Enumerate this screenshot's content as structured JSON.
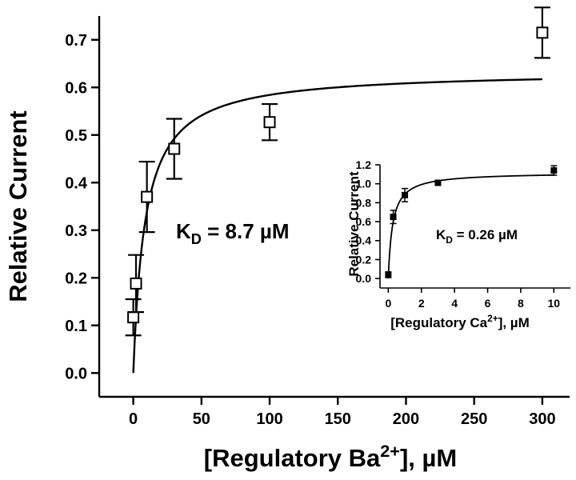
{
  "chart_data": [
    {
      "type": "scatter",
      "title": "",
      "xlabel_main": "[Regulatory Ba",
      "xlabel_sup": "2+",
      "xlabel_tail": "], µM",
      "ylabel": "Relative Current",
      "xlim": [
        -25,
        320
      ],
      "ylim": [
        -0.05,
        0.75
      ],
      "xticks": [
        0,
        50,
        100,
        150,
        200,
        250,
        300
      ],
      "yticks": [
        "0.0",
        "0.1",
        "0.2",
        "0.3",
        "0.4",
        "0.5",
        "0.6",
        "0.7"
      ],
      "points": [
        {
          "x": 0,
          "y": 0.117,
          "err": 0.038
        },
        {
          "x": 2,
          "y": 0.188,
          "err": 0.06
        },
        {
          "x": 10,
          "y": 0.37,
          "err": 0.074
        },
        {
          "x": 30,
          "y": 0.471,
          "err": 0.063
        },
        {
          "x": 100,
          "y": 0.527,
          "err": 0.038
        },
        {
          "x": 300,
          "y": 0.715,
          "err": 0.053
        }
      ],
      "fit": {
        "model": "hill",
        "ymax": 0.635,
        "kd": 8.7,
        "x_range": [
          0,
          300
        ]
      },
      "annotation": {
        "prefix": "K",
        "sub": "D",
        "suffix": " = 8.7 µM"
      },
      "marker": "open-square"
    },
    {
      "type": "scatter",
      "inset": true,
      "xlabel_main": "[Regulatory Ca",
      "xlabel_sup": "2+",
      "xlabel_tail": "], µM",
      "ylabel": "Relative Current",
      "xlim": [
        -0.5,
        11
      ],
      "ylim": [
        -0.1,
        1.2
      ],
      "xticks": [
        0,
        2,
        4,
        6,
        8,
        10
      ],
      "yticks": [
        "0.0",
        "0.2",
        "0.4",
        "0.6",
        "0.8",
        "1.0",
        "1.2"
      ],
      "points": [
        {
          "x": 0,
          "y": 0.04,
          "err": 0.03
        },
        {
          "x": 0.3,
          "y": 0.65,
          "err": 0.07
        },
        {
          "x": 1,
          "y": 0.88,
          "err": 0.07
        },
        {
          "x": 3,
          "y": 1.01,
          "err": 0.02
        },
        {
          "x": 10,
          "y": 1.14,
          "err": 0.05
        }
      ],
      "fit": {
        "model": "hill",
        "ymax": 1.12,
        "kd": 0.26,
        "x_range": [
          0,
          10
        ]
      },
      "annotation": {
        "prefix": "K",
        "sub": "D",
        "suffix": " = 0.26 µM"
      },
      "marker": "filled-square"
    }
  ]
}
